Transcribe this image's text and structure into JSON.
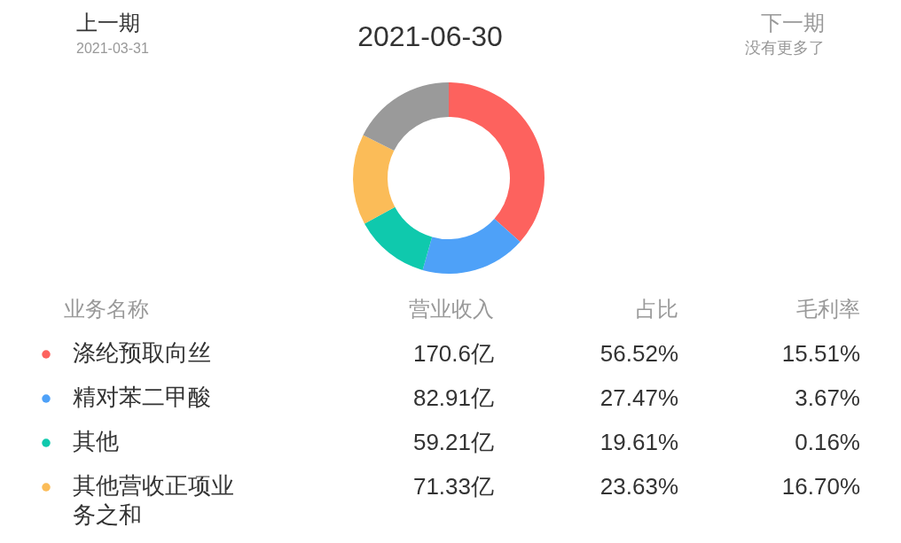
{
  "chart_data": [
    {
      "type": "donut",
      "title": "2021-06-30",
      "annotations": [
        "上一期",
        "2021-03-31",
        "下一期",
        "没有更多了",
        "营业收入"
      ],
      "legend_title": "业务名称",
      "legend": "bottom",
      "categories": [
        "涤纶预取向丝",
        "精对苯二甲酸",
        "其他",
        "其他营收正项业务之和",
        null
      ],
      "colors": [
        "#fd625e",
        "#4ea1f8",
        "#0fc9ad",
        "#fbbc58",
        "#9a9a9a"
      ],
      "values": [
        170.6,
        82.91,
        59.21,
        71.33,
        82
      ],
      "value_labels": [
        "170.6亿",
        "82.91亿",
        "59.21亿",
        "71.33亿",
        null
      ]
    },
    {
      "type": "other",
      "annotations": [
        "占比",
        "毛利率",
        "56.52%",
        "15.51%",
        "27.47%",
        "3.67%",
        "19.61%",
        "0.16%",
        "23.63%",
        "16.70%"
      ]
    }
  ]
}
